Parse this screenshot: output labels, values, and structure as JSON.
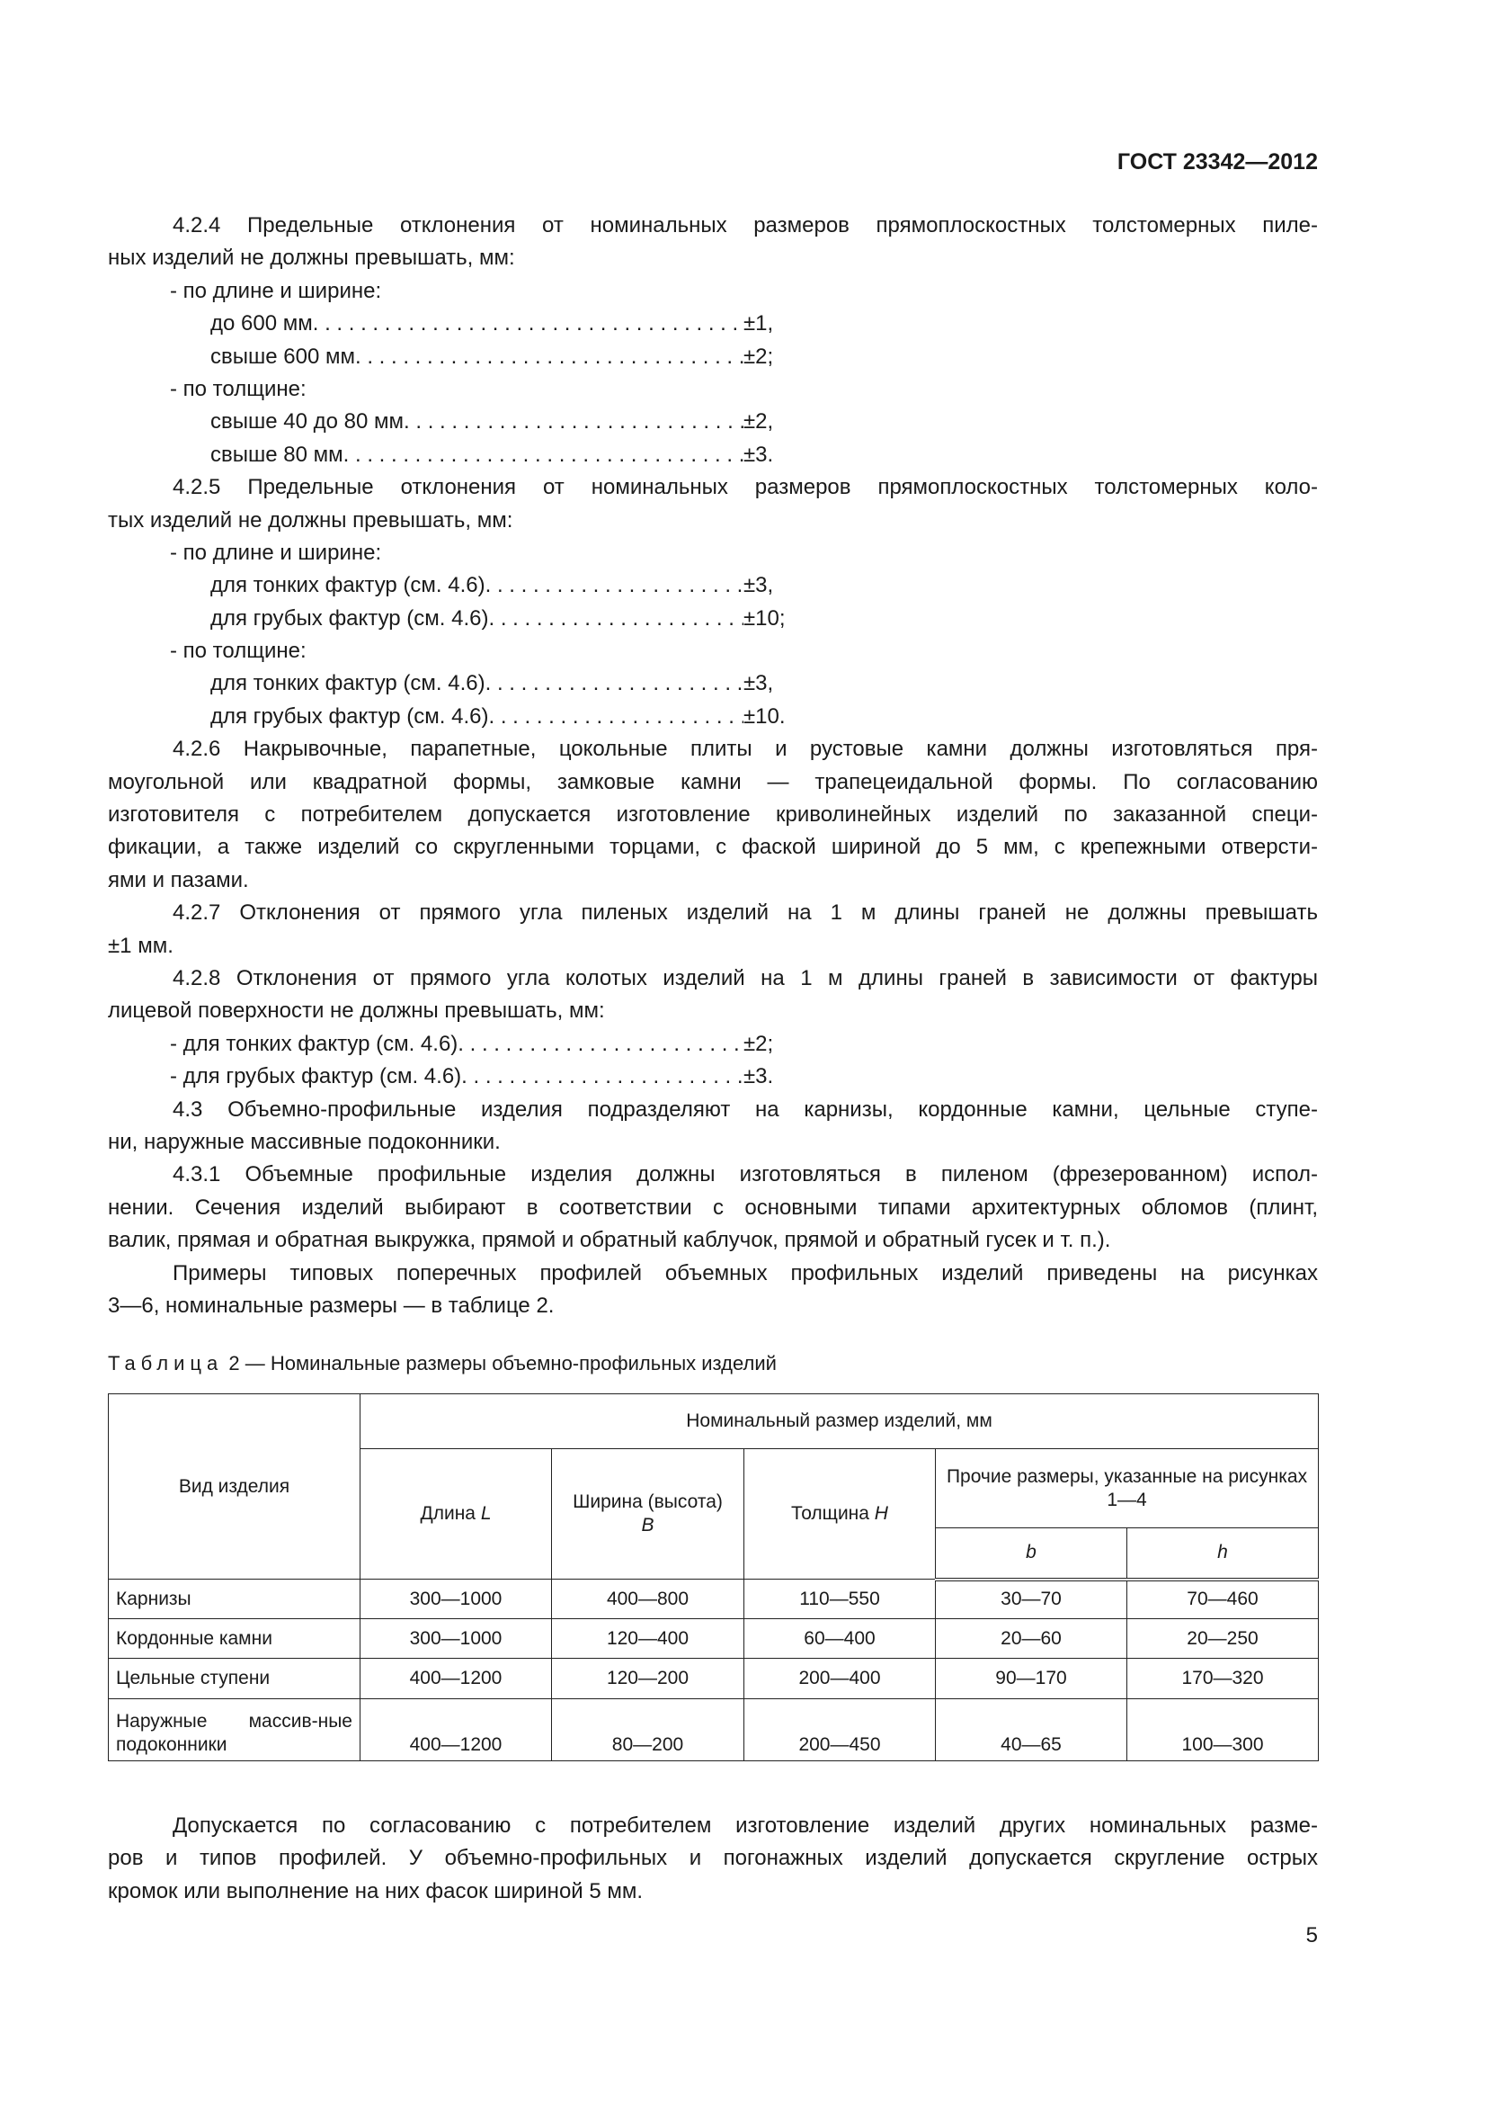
{
  "header": {
    "doc_code": "ГОСТ 23342—2012"
  },
  "body": [
    {
      "t": "line",
      "cls": "first j",
      "text": "4.2.4  Предельные отклонения от номинальных размеров прямоплоскостных толстомерных пиле-"
    },
    {
      "t": "line",
      "cls": "",
      "text": "ных изделий не должны превышать, мм:"
    },
    {
      "t": "line",
      "cls": "item",
      "text": "-  по длине и ширине:"
    },
    {
      "t": "leader",
      "label": "до 600 мм ",
      "value": "±1,"
    },
    {
      "t": "leader",
      "label": "свыше 600 мм ",
      "value": "±2;"
    },
    {
      "t": "line",
      "cls": "item",
      "text": "-  по толщине:"
    },
    {
      "t": "leader",
      "label": "свыше 40 до 80 мм ",
      "value": "±2,"
    },
    {
      "t": "leader",
      "label": "свыше 80 мм ",
      "value": "±3."
    },
    {
      "t": "line",
      "cls": "first j",
      "text": "4.2.5  Предельные отклонения от номинальных размеров прямоплоскостных толстомерных коло-"
    },
    {
      "t": "line",
      "cls": "",
      "text": "тых изделий не должны превышать, мм:"
    },
    {
      "t": "line",
      "cls": "item",
      "text": "-  по длине и ширине:"
    },
    {
      "t": "leader",
      "label": "для тонких фактур (см. 4.6) ",
      "value": "±3,"
    },
    {
      "t": "leader",
      "label": "для грубых фактур (см. 4.6)",
      "value": "±10;"
    },
    {
      "t": "line",
      "cls": "item",
      "text": "-  по толщине:"
    },
    {
      "t": "leader",
      "label": "для тонких фактур (см. 4.6) ",
      "value": "±3,"
    },
    {
      "t": "leader",
      "label": "для грубых фактур (см. 4.6)",
      "value": "±10."
    },
    {
      "t": "line",
      "cls": "first j",
      "text": "4.2.6  Накрывочные, парапетные, цокольные плиты и рустовые камни должны изготовляться пря-"
    },
    {
      "t": "line",
      "cls": "j",
      "text": "моугольной или квадратной формы, замковые камни — трапецеидальной формы. По согласованию"
    },
    {
      "t": "line",
      "cls": "j",
      "text": "изготовителя с потребителем допускается изготовление криволинейных изделий по заказанной специ-"
    },
    {
      "t": "line",
      "cls": "j",
      "text": "фикации, а также изделий со скругленными торцами, с фаской шириной до 5 мм, с крепежными отверсти-"
    },
    {
      "t": "line",
      "cls": "",
      "text": "ями и пазами."
    },
    {
      "t": "line",
      "cls": "first j",
      "text": "4.2.7  Отклонения от прямого угла пиленых изделий на 1 м длины граней не должны превышать"
    },
    {
      "t": "line",
      "cls": "",
      "text": "±1 мм."
    },
    {
      "t": "line",
      "cls": "first j",
      "text": "4.2.8  Отклонения от прямого угла колотых изделий на 1 м длины граней в зависимости от фактуры"
    },
    {
      "t": "line",
      "cls": "",
      "text": "лицевой поверхности не должны превышать, мм:"
    },
    {
      "t": "leader",
      "pad": "item",
      "label": "-  для тонких фактур (см. 4.6) ",
      "value": "±2;"
    },
    {
      "t": "leader",
      "pad": "item",
      "label": "-  для грубых фактур (см. 4.6)",
      "value": "±3."
    },
    {
      "t": "line",
      "cls": "first j",
      "text": "4.3  Объемно-профильные изделия подразделяют на карнизы, кордонные камни, цельные ступе-"
    },
    {
      "t": "line",
      "cls": "",
      "text": "ни, наружные массивные подоконники."
    },
    {
      "t": "line",
      "cls": "first j",
      "text": "4.3.1  Объемные профильные изделия должны изготовляться в пиленом (фрезерованном) испол-"
    },
    {
      "t": "line",
      "cls": "j",
      "text": "нении. Сечения изделий выбирают в соответствии с основными типами архитектурных обломов (плинт,"
    },
    {
      "t": "line",
      "cls": "",
      "text": "валик, прямая и обратная выкружка, прямой и обратный каблучок, прямой и обратный гусек и т. п.)."
    },
    {
      "t": "line",
      "cls": "first j",
      "text": "Примеры типовых поперечных профилей объемных профильных изделий приведены на рисунках"
    },
    {
      "t": "line",
      "cls": "",
      "text": "3—6, номинальные размеры — в таблице 2."
    }
  ],
  "table": {
    "caption_prefix": "Таблица",
    "caption_rest": " 2 — Номинальные размеры объемно-профильных изделий",
    "head": {
      "kind": "Вид изделия",
      "group": "Номинальный размер изделий, мм",
      "length": "Длина ",
      "length_sym": "L",
      "width": "Ширина (высота)",
      "width_sym": "B",
      "thickness": "Толщина ",
      "thickness_sym": "H",
      "other": "Прочие размеры, указанные на рисунках 1—4",
      "b": "b",
      "h": "h"
    },
    "rows": [
      [
        "Карнизы",
        "300—1000",
        "400—800",
        "110—550",
        "30—70",
        "70—460"
      ],
      [
        "Кордонные камни",
        "300—1000",
        "120—400",
        "60—400",
        "20—60",
        "20—250"
      ],
      [
        "Цельные ступени",
        "400—1200",
        "120—200",
        "200—400",
        "90—170",
        "170—320"
      ],
      [
        "Наружные массив-ные подоконники",
        "400—1200",
        "80—200",
        "200—450",
        "40—65",
        "100—300"
      ]
    ]
  },
  "post": [
    {
      "cls": "first j",
      "text": "Допускается по согласованию с потребителем изготовление изделий других номинальных разме-"
    },
    {
      "cls": "j",
      "text": "ров и типов профилей. У объемно-профильных и погонажных изделий допускается скругление острых"
    },
    {
      "cls": "",
      "text": "кромок или выполнение на них фасок шириной 5 мм."
    }
  ],
  "page_number": "5"
}
